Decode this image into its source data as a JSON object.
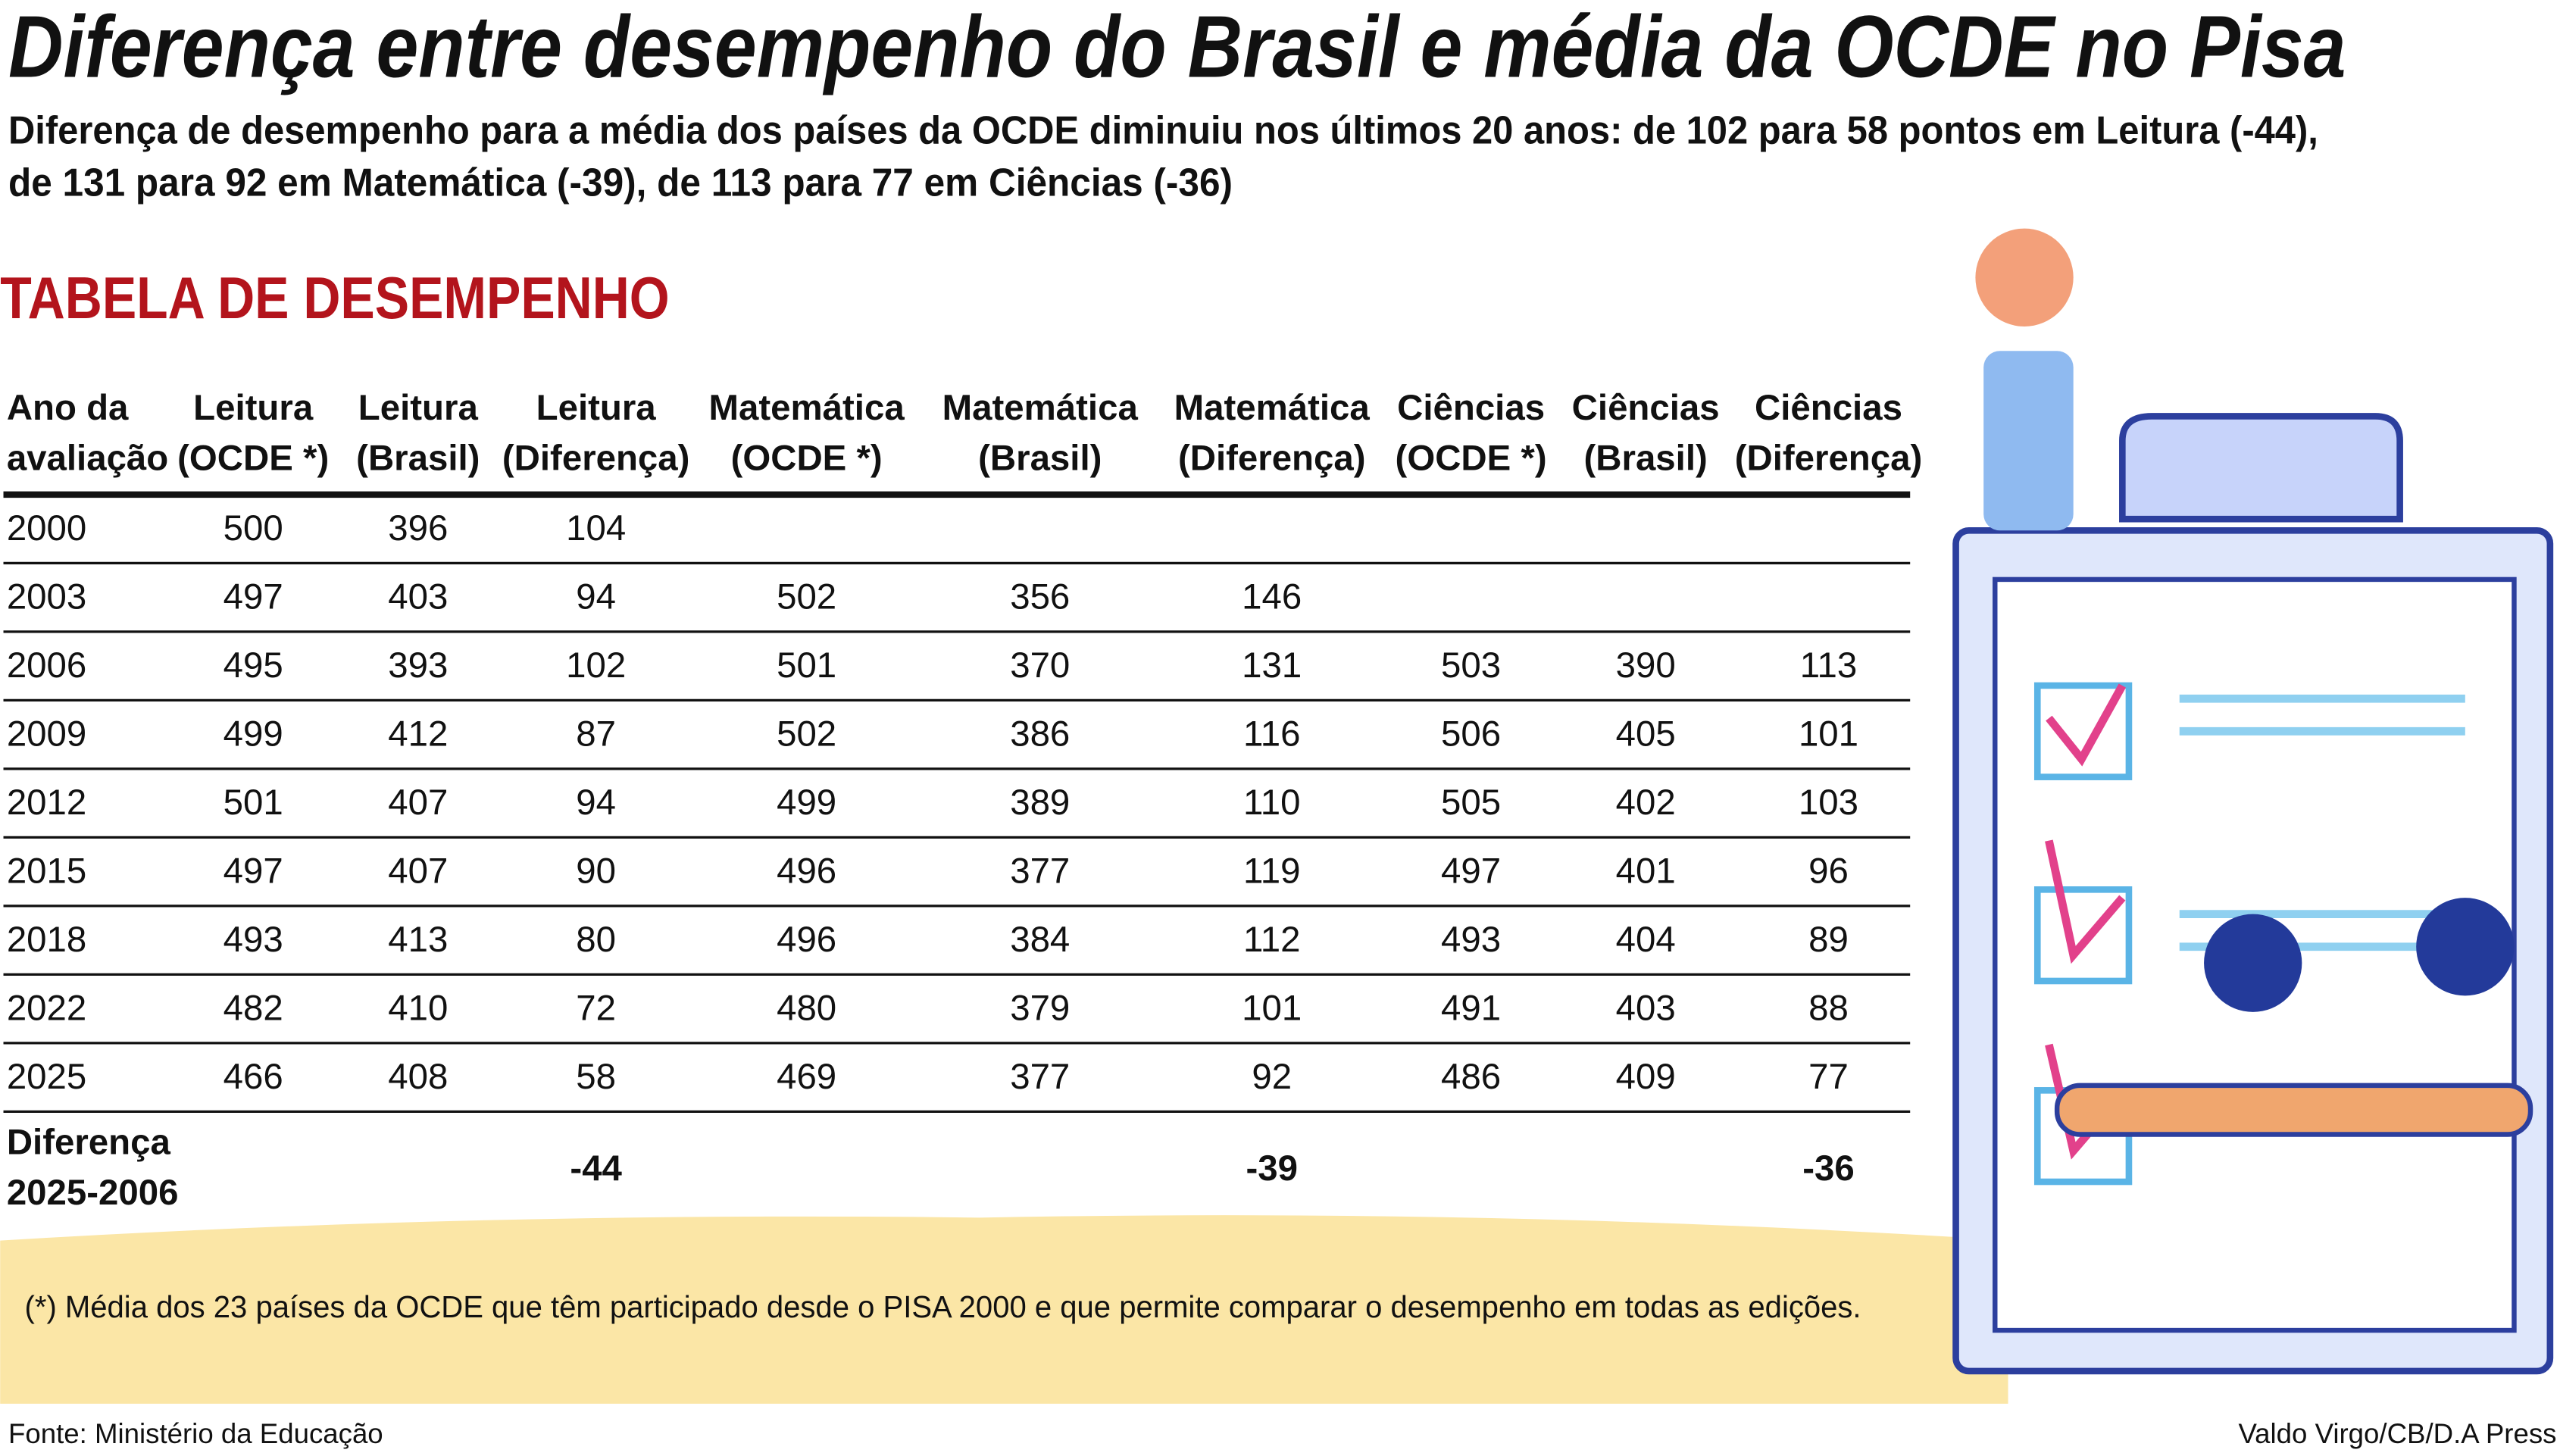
{
  "title": "Diferença entre desempenho do Brasil e média da OCDE no Pisa",
  "subtitle": [
    "Diferença de desempenho para a média dos países da OCDE diminuiu nos últimos 20 anos: de 102 para 58 pontos em Leitura (-44),",
    "de 131 para 92 em Matemática (-39), de 113 para 77 em Ciências (-36)"
  ],
  "section_title": "TABELA DE DESEMPENHO",
  "table": {
    "headers": [
      [
        "Ano da",
        "avaliação"
      ],
      [
        "Leitura",
        "(OCDE *)"
      ],
      [
        "Leitura",
        "(Brasil)"
      ],
      [
        "Leitura",
        "(Diferença)"
      ],
      [
        "Matemática",
        "(OCDE *)"
      ],
      [
        "Matemática",
        "(Brasil)"
      ],
      [
        "Matemática",
        "(Diferença)"
      ],
      [
        "Ciências",
        "(OCDE *)"
      ],
      [
        "Ciências",
        "(Brasil)"
      ],
      [
        "Ciências",
        "(Diferença)"
      ]
    ],
    "rows": [
      [
        2000,
        500,
        396,
        104,
        null,
        null,
        null,
        null,
        null,
        null
      ],
      [
        2003,
        497,
        403,
        94,
        502,
        356,
        146,
        null,
        null,
        null
      ],
      [
        2006,
        495,
        393,
        102,
        501,
        370,
        131,
        503,
        390,
        113
      ],
      [
        2009,
        499,
        412,
        87,
        502,
        386,
        116,
        506,
        405,
        101
      ],
      [
        2012,
        501,
        407,
        94,
        499,
        389,
        110,
        505,
        402,
        103
      ],
      [
        2015,
        497,
        407,
        90,
        496,
        377,
        119,
        497,
        401,
        96
      ],
      [
        2018,
        493,
        413,
        80,
        496,
        384,
        112,
        493,
        404,
        89
      ],
      [
        2022,
        482,
        410,
        72,
        480,
        379,
        101,
        491,
        403,
        88
      ],
      [
        2025,
        466,
        408,
        58,
        469,
        377,
        92,
        486,
        409,
        77
      ]
    ],
    "difference_row": {
      "label": [
        "Diferença",
        "2025-2006"
      ],
      "values": [
        null,
        null,
        -44,
        null,
        null,
        -39,
        null,
        null,
        -36
      ]
    }
  },
  "footnote": "(*) Média dos 23 países da OCDE que têm participado desde o PISA 2000 e que permite comparar o desempenho em todas as edições.",
  "source": "Fonte: Ministério da Educação",
  "credit": "Valdo Virgo/CB/D.A Press"
}
